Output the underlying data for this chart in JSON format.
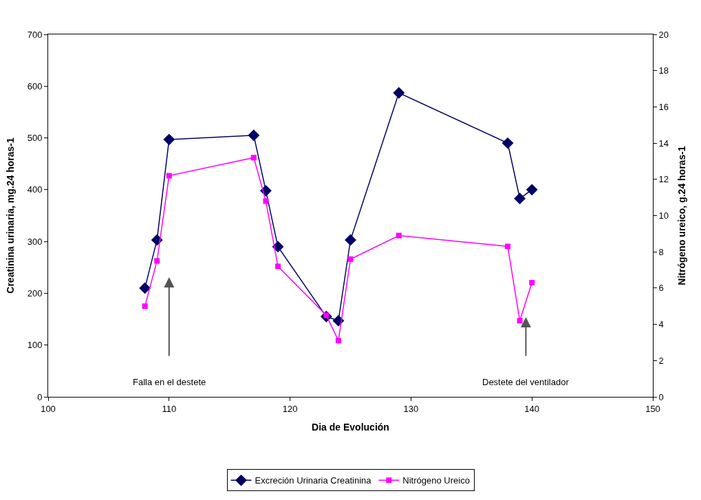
{
  "chart_data": {
    "type": "line",
    "xlabel": "Dia de Evolución",
    "ylabel": "Creatinina urinaria, mg.24 horas-1",
    "y2label": "Nitrógeno ureico, g.24 horas-1",
    "xlim": [
      100,
      150
    ],
    "xticks": [
      100,
      110,
      120,
      130,
      140,
      150
    ],
    "ylim": [
      0,
      700
    ],
    "yticks": [
      0,
      100,
      200,
      300,
      400,
      500,
      600,
      700
    ],
    "y2lim": [
      0,
      20
    ],
    "y2ticks": [
      0,
      2,
      4,
      6,
      8,
      10,
      12,
      14,
      16,
      18,
      20
    ],
    "legend": "bottom",
    "series": [
      {
        "name": "Excreción Urinaria Creatinina",
        "color": "#000066",
        "marker": "diamond",
        "x": [
          108,
          109,
          110,
          117,
          118,
          119,
          123,
          124,
          125,
          129,
          138,
          139,
          140
        ],
        "values": [
          210,
          303,
          497,
          505,
          398,
          290,
          155,
          147,
          303,
          587,
          490,
          383,
          400
        ]
      },
      {
        "name": "Nitrógeno Ureico",
        "color": "#ff00ff",
        "marker": "square",
        "axis": "y2",
        "x": [
          108,
          109,
          110,
          117,
          118,
          119,
          123,
          124,
          125,
          129,
          138,
          139,
          140
        ],
        "values": [
          5.0,
          7.5,
          12.2,
          13.2,
          10.8,
          7.2,
          4.5,
          3.1,
          7.6,
          8.9,
          8.3,
          4.2,
          6.3
        ]
      }
    ],
    "annotations": [
      "Falla en el destete",
      "Destete del ventilador"
    ]
  }
}
